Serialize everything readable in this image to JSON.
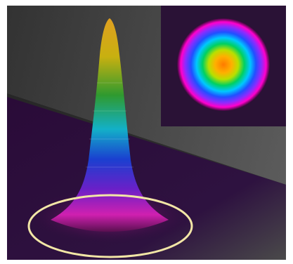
{
  "figure": {
    "subject": "beam-profile",
    "colors": {
      "background_dark": "#2a2a2a",
      "floor": "#2a0d3a",
      "plane_gray": "#5a5a5a",
      "ring": "#f2e6a6",
      "peak_top": "#e0a020",
      "peak_mid": "#2a8a2a",
      "peak_low": "#1a50d0",
      "peak_base": "#d020b0"
    },
    "inset": {
      "rings": [
        "#ff00cc",
        "#8a2cff",
        "#2050ff",
        "#00c8ff",
        "#00d060",
        "#b8e000",
        "#ff9a00"
      ]
    }
  }
}
